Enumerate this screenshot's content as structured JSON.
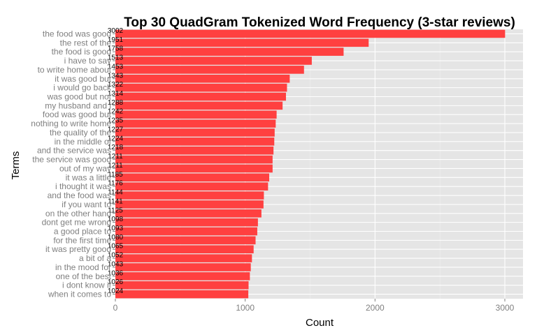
{
  "chart_data": {
    "type": "bar",
    "orientation": "horizontal",
    "title": "Top 30 QuadGram Tokenized Word Frequency (3-star reviews)",
    "xlabel": "Count",
    "ylabel": "Terms",
    "xlim": [
      0,
      3140
    ],
    "x_ticks": [
      "0",
      "1000",
      "2000",
      "3000"
    ],
    "grid": true,
    "legend": "none",
    "categories": [
      "the food was good",
      "the rest of the",
      "the food is good",
      "i have to say",
      "to write home about",
      "it was good but",
      "i would go back",
      "was good but not",
      "my husband and i",
      "food was good but",
      "nothing to write home",
      "the quality of the",
      "in the middle of",
      "and the service was",
      "the service was good",
      "out of my way",
      "it was a little",
      "i thought it was",
      "and the food was",
      "if you want to",
      "on the other hand",
      "dont get me wrong",
      "a good place to",
      "for the first time",
      "it was pretty good",
      "a bit of a",
      "in the mood for",
      "one of the best",
      "i dont know if",
      "when it comes to"
    ],
    "values": [
      3002,
      1951,
      1758,
      1513,
      1453,
      1343,
      1322,
      1314,
      1288,
      1242,
      1235,
      1227,
      1224,
      1218,
      1211,
      1211,
      1185,
      1176,
      1144,
      1141,
      1125,
      1098,
      1093,
      1080,
      1065,
      1052,
      1043,
      1036,
      1026,
      1024
    ],
    "colors": {
      "bar": "#ff4040",
      "panel": "#e5e5e5",
      "grid_major": "#ffffff",
      "grid_minor": "#f2f2f2",
      "tick_text": "#7f7f7f",
      "tick_mark": "#7f7f7f"
    }
  }
}
